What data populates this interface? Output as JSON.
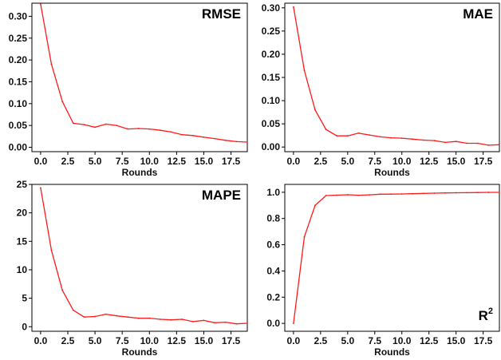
{
  "chart_data": [
    {
      "type": "line",
      "title": "RMSE",
      "xlabel": "Rounds",
      "ylabel": "",
      "xlim": [
        -0.8,
        19
      ],
      "ylim": [
        -0.01,
        0.33
      ],
      "xticks": [
        0.0,
        2.5,
        5.0,
        7.5,
        10.0,
        12.5,
        15.0,
        17.5
      ],
      "xtick_labels": [
        "0.0",
        "2.5",
        "5.0",
        "7.5",
        "10.0",
        "12.5",
        "15.0",
        "17.5"
      ],
      "yticks": [
        0.0,
        0.05,
        0.1,
        0.15,
        0.2,
        0.25,
        0.3
      ],
      "ytick_labels": [
        "0.00",
        "0.05",
        "0.10",
        "0.15",
        "0.20",
        "0.25",
        "0.30"
      ],
      "grid": false,
      "color": "#ff1a1a",
      "series": [
        {
          "x": [
            0,
            1,
            2,
            3,
            4,
            5,
            6,
            7,
            8,
            9,
            10,
            11,
            12,
            13,
            14,
            15,
            16,
            17,
            18,
            19
          ],
          "values": [
            0.328,
            0.19,
            0.105,
            0.055,
            0.052,
            0.046,
            0.053,
            0.05,
            0.042,
            0.043,
            0.042,
            0.039,
            0.035,
            0.029,
            0.027,
            0.023,
            0.02,
            0.016,
            0.013,
            0.012
          ]
        }
      ]
    },
    {
      "type": "line",
      "title": "MAE",
      "xlabel": "Rounds",
      "ylabel": "",
      "xlim": [
        -0.8,
        19
      ],
      "ylim": [
        -0.01,
        0.31
      ],
      "xticks": [
        0.0,
        2.5,
        5.0,
        7.5,
        10.0,
        12.5,
        15.0,
        17.5
      ],
      "xtick_labels": [
        "0.0",
        "2.5",
        "5.0",
        "7.5",
        "10.0",
        "12.5",
        "15.0",
        "17.5"
      ],
      "yticks": [
        0.0,
        0.05,
        0.1,
        0.15,
        0.2,
        0.25,
        0.3
      ],
      "ytick_labels": [
        "0.00",
        "0.05",
        "0.10",
        "0.15",
        "0.20",
        "0.25",
        "0.30"
      ],
      "grid": false,
      "color": "#ff1a1a",
      "series": [
        {
          "x": [
            0,
            1,
            2,
            3,
            4,
            5,
            6,
            7,
            8,
            9,
            10,
            11,
            12,
            13,
            14,
            15,
            16,
            17,
            18,
            19
          ],
          "values": [
            0.302,
            0.165,
            0.08,
            0.038,
            0.024,
            0.024,
            0.03,
            0.026,
            0.022,
            0.02,
            0.019,
            0.017,
            0.015,
            0.014,
            0.01,
            0.012,
            0.008,
            0.008,
            0.004,
            0.005
          ]
        }
      ]
    },
    {
      "type": "line",
      "title": "MAPE",
      "xlabel": "Rounds",
      "ylabel": "",
      "xlim": [
        -0.8,
        19
      ],
      "ylim": [
        -0.8,
        25
      ],
      "xticks": [
        0.0,
        2.5,
        5.0,
        7.5,
        10.0,
        12.5,
        15.0,
        17.5
      ],
      "xtick_labels": [
        "0.0",
        "2.5",
        "5.0",
        "7.5",
        "10.0",
        "12.5",
        "15.0",
        "17.5"
      ],
      "yticks": [
        0,
        5,
        10,
        15,
        20,
        25
      ],
      "ytick_labels": [
        "0",
        "5",
        "10",
        "15",
        "20",
        "25"
      ],
      "grid": false,
      "color": "#ff1a1a",
      "series": [
        {
          "x": [
            0,
            1,
            2,
            3,
            4,
            5,
            6,
            7,
            8,
            9,
            10,
            11,
            12,
            13,
            14,
            15,
            16,
            17,
            18,
            19
          ],
          "values": [
            24.4,
            13.4,
            6.4,
            2.9,
            1.7,
            1.8,
            2.2,
            1.9,
            1.7,
            1.5,
            1.5,
            1.3,
            1.2,
            1.3,
            0.9,
            1.1,
            0.7,
            0.8,
            0.5,
            0.6
          ]
        }
      ]
    },
    {
      "type": "line",
      "title": "R",
      "title_superscript": "2",
      "xlabel": "Rounds",
      "ylabel": "",
      "xlim": [
        -0.8,
        19
      ],
      "ylim": [
        -0.06,
        1.06
      ],
      "xticks": [
        0.0,
        2.5,
        5.0,
        7.5,
        10.0,
        12.5,
        15.0,
        17.5
      ],
      "xtick_labels": [
        "0.0",
        "2.5",
        "5.0",
        "7.5",
        "10.0",
        "12.5",
        "15.0",
        "17.5"
      ],
      "yticks": [
        0.0,
        0.2,
        0.4,
        0.6,
        0.8,
        1.0
      ],
      "ytick_labels": [
        "0.0",
        "0.2",
        "0.4",
        "0.6",
        "0.8",
        "1.0"
      ],
      "grid": false,
      "color": "#ff1a1a",
      "series": [
        {
          "x": [
            0,
            1,
            2,
            3,
            4,
            5,
            6,
            7,
            8,
            9,
            10,
            11,
            12,
            13,
            14,
            15,
            16,
            17,
            18,
            19
          ],
          "values": [
            0.0,
            0.66,
            0.9,
            0.975,
            0.978,
            0.981,
            0.977,
            0.98,
            0.985,
            0.986,
            0.987,
            0.989,
            0.991,
            0.993,
            0.995,
            0.996,
            0.997,
            0.998,
            0.999,
            0.999
          ]
        }
      ]
    }
  ]
}
